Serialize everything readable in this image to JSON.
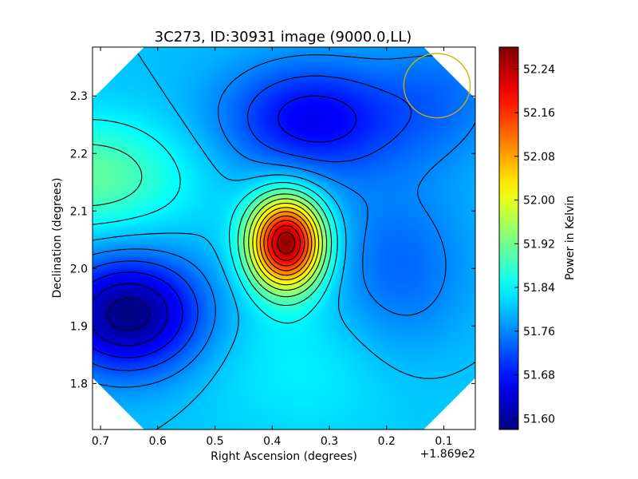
{
  "chart_data": {
    "type": "heatmap",
    "title": "3C273, ID:30931 image (9000.0,LL)",
    "xlabel": "Right Ascension (degrees)",
    "ylabel": "Declination (degrees)",
    "x_offset_label": "+1.869e2",
    "xlim": [
      0.714,
      0.045
    ],
    "ylim": [
      1.72,
      2.385
    ],
    "x_ticks": [
      {
        "value": 0.7,
        "label": "0.7"
      },
      {
        "value": 0.6,
        "label": "0.6"
      },
      {
        "value": 0.5,
        "label": "0.5"
      },
      {
        "value": 0.4,
        "label": "0.4"
      },
      {
        "value": 0.3,
        "label": "0.3"
      },
      {
        "value": 0.2,
        "label": "0.2"
      },
      {
        "value": 0.1,
        "label": "0.1"
      }
    ],
    "y_ticks": [
      {
        "value": 1.8,
        "label": "1.8"
      },
      {
        "value": 1.9,
        "label": "1.9"
      },
      {
        "value": 2.0,
        "label": "2.0"
      },
      {
        "value": 2.1,
        "label": "2.1"
      },
      {
        "value": 2.2,
        "label": "2.2"
      },
      {
        "value": 2.3,
        "label": "2.3"
      }
    ],
    "colorbar": {
      "label": "Power in Kelvin",
      "range": [
        51.58,
        52.28
      ],
      "colormap": "jet",
      "ticks": [
        {
          "value": 51.6,
          "label": "51.60"
        },
        {
          "value": 51.68,
          "label": "51.68"
        },
        {
          "value": 51.76,
          "label": "51.76"
        },
        {
          "value": 51.84,
          "label": "51.84"
        },
        {
          "value": 51.92,
          "label": "51.92"
        },
        {
          "value": 52.0,
          "label": "52.00"
        },
        {
          "value": 52.08,
          "label": "52.08"
        },
        {
          "value": 52.16,
          "label": "52.16"
        },
        {
          "value": 52.24,
          "label": "52.24"
        }
      ]
    },
    "field": {
      "base": 51.8,
      "features": [
        {
          "ra": 0.375,
          "dec": 2.045,
          "amp": 0.47,
          "sigma_ra": 0.045,
          "sigma_dec": 0.055
        },
        {
          "ra": 0.65,
          "dec": 1.92,
          "amp": -0.22,
          "sigma_ra": 0.09,
          "sigma_dec": 0.07
        },
        {
          "ra": 0.33,
          "dec": 2.26,
          "amp": -0.14,
          "sigma_ra": 0.11,
          "sigma_dec": 0.07
        },
        {
          "ra": 0.72,
          "dec": 2.16,
          "amp": 0.11,
          "sigma_ra": 0.12,
          "sigma_dec": 0.07
        },
        {
          "ra": 0.18,
          "dec": 1.98,
          "amp": -0.07,
          "sigma_ra": 0.09,
          "sigma_dec": 0.12
        },
        {
          "ra": 0.3,
          "dec": 1.84,
          "amp": 0.04,
          "sigma_ra": 0.16,
          "sigma_dec": 0.1
        },
        {
          "ra": 0.1,
          "dec": 2.3,
          "amp": -0.05,
          "sigma_ra": 0.08,
          "sigma_dec": 0.08
        }
      ],
      "contour_levels": [
        51.6,
        51.64,
        51.68,
        51.72,
        51.76,
        51.8,
        51.84,
        51.88,
        51.92,
        51.96,
        52.0,
        52.04,
        52.08,
        52.12,
        52.16,
        52.2,
        52.24
      ]
    },
    "beam": {
      "ra": 0.112,
      "dec": 2.318,
      "radius_ra": 0.058,
      "radius_dec": 0.056,
      "color": "#c8b400"
    },
    "footprint": {
      "shape": "octagon",
      "corner_cut_fraction": 0.135
    },
    "grid": false
  }
}
